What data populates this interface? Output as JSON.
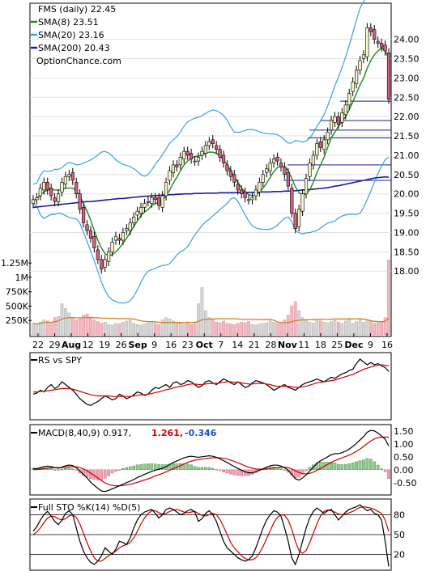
{
  "chart_data": [
    {
      "type": "candlestick",
      "symbol_label": "FMS (daily) 22.45",
      "legend": [
        {
          "name": "SMA(8) 23.51",
          "color": "#1a8a1a"
        },
        {
          "name": "SMA(20) 23.16",
          "color": "#3aa0e0"
        },
        {
          "name": "SMA(200) 20.43",
          "color": "#1a1aa0"
        }
      ],
      "watermark": "OptionChance.com",
      "price_ticks": [
        "24.00",
        "23.50",
        "23.00",
        "22.50",
        "22.00",
        "21.50",
        "21.00",
        "20.50",
        "20.00",
        "19.50",
        "19.00",
        "18.50",
        "18.00"
      ],
      "ylim": [
        17.9,
        24.6
      ],
      "volume_ticks": [
        "1.25M",
        "1M",
        "750K",
        "500K",
        "250K"
      ],
      "x_labels": [
        {
          "text": "22",
          "bold": false
        },
        {
          "text": "29",
          "bold": false
        },
        {
          "text": "Aug",
          "bold": true
        },
        {
          "text": "12",
          "bold": false
        },
        {
          "text": "19",
          "bold": false
        },
        {
          "text": "26",
          "bold": false
        },
        {
          "text": "Sep",
          "bold": true
        },
        {
          "text": "9",
          "bold": false
        },
        {
          "text": "16",
          "bold": false
        },
        {
          "text": "23",
          "bold": false
        },
        {
          "text": "Oct",
          "bold": true
        },
        {
          "text": "7",
          "bold": false
        },
        {
          "text": "14",
          "bold": false
        },
        {
          "text": "21",
          "bold": false
        },
        {
          "text": "28",
          "bold": false
        },
        {
          "text": "Nov",
          "bold": true
        },
        {
          "text": "11",
          "bold": false
        },
        {
          "text": "18",
          "bold": false
        },
        {
          "text": "25",
          "bold": false
        },
        {
          "text": "Dec",
          "bold": true
        },
        {
          "text": "9",
          "bold": false
        },
        {
          "text": "16",
          "bold": false
        }
      ],
      "close": [
        19.85,
        19.9,
        20.15,
        20.3,
        20.1,
        19.95,
        19.8,
        20.0,
        20.3,
        20.45,
        20.5,
        20.35,
        20.0,
        19.6,
        19.25,
        19.05,
        18.85,
        18.6,
        18.3,
        18.05,
        18.3,
        18.5,
        18.75,
        18.9,
        18.8,
        19.0,
        19.1,
        19.25,
        19.4,
        19.55,
        19.65,
        19.75,
        19.8,
        19.9,
        19.85,
        19.7,
        19.95,
        20.3,
        20.6,
        20.75,
        20.7,
        20.95,
        21.1,
        21.0,
        20.9,
        20.85,
        20.95,
        21.1,
        21.25,
        21.35,
        21.3,
        21.15,
        20.95,
        20.8,
        20.6,
        20.45,
        20.3,
        20.1,
        20.0,
        19.9,
        19.85,
        19.9,
        20.1,
        20.3,
        20.5,
        20.65,
        20.8,
        20.9,
        20.85,
        20.7,
        20.5,
        20.2,
        19.5,
        19.1,
        19.6,
        20.0,
        20.4,
        20.8,
        21.0,
        21.3,
        21.2,
        21.4,
        21.6,
        21.9,
        22.0,
        21.8,
        22.1,
        22.3,
        22.6,
        22.9,
        23.2,
        23.45,
        23.6,
        24.3,
        24.2,
        24.0,
        23.9,
        23.8,
        23.7,
        22.45
      ],
      "sma8": [
        19.8,
        19.88,
        19.97,
        20.05,
        20.1,
        20.12,
        20.1,
        20.1,
        20.1,
        20.15,
        20.15,
        20.15,
        20.08,
        19.95,
        19.75,
        19.55,
        19.32,
        19.05,
        18.8,
        18.6,
        18.45,
        18.4,
        18.42,
        18.5,
        18.6,
        18.72,
        18.85,
        19.0,
        19.15,
        19.3,
        19.43,
        19.53,
        19.6,
        19.7,
        19.75,
        19.78,
        19.83,
        19.95,
        20.1,
        20.28,
        20.43,
        20.6,
        20.75,
        20.85,
        20.92,
        20.97,
        20.98,
        21.0,
        21.05,
        21.08,
        21.08,
        21.05,
        20.98,
        20.88,
        20.75,
        20.6,
        20.45,
        20.3,
        20.15,
        20.05,
        19.98,
        19.95,
        19.97,
        20.05,
        20.15,
        20.28,
        20.43,
        20.58,
        20.68,
        20.72,
        20.7,
        20.6,
        20.4,
        20.18,
        20.03,
        19.97,
        20.0,
        20.1,
        20.3,
        20.55,
        20.75,
        20.95,
        21.2,
        21.45,
        21.6,
        21.75,
        21.88,
        22.0,
        22.18,
        22.38,
        22.6,
        22.82,
        23.0,
        23.25,
        23.45,
        23.6,
        23.7,
        23.78,
        23.7,
        23.51
      ],
      "sma20": [
        20.0,
        19.98,
        19.97,
        19.98,
        20.0,
        20.03,
        20.05,
        20.07,
        20.08,
        20.1,
        20.1,
        20.08,
        20.05,
        20.0,
        19.9,
        19.8,
        19.7,
        19.6,
        19.5,
        19.4,
        19.3,
        19.2,
        19.12,
        19.05,
        19.0,
        18.97,
        18.96,
        18.97,
        19.0,
        19.05,
        19.1,
        19.17,
        19.25,
        19.33,
        19.42,
        19.5,
        19.58,
        19.66,
        19.75,
        19.85,
        19.95,
        20.05,
        20.15,
        20.25,
        20.35,
        20.45,
        20.52,
        20.6,
        20.68,
        20.74,
        20.8,
        20.83,
        20.85,
        20.85,
        20.83,
        20.8,
        20.75,
        20.7,
        20.62,
        20.55,
        20.48,
        20.42,
        20.38,
        20.35,
        20.33,
        20.32,
        20.32,
        20.34,
        20.36,
        20.38,
        20.38,
        20.36,
        20.3,
        20.22,
        20.18,
        20.15,
        20.18,
        20.22,
        20.3,
        20.4,
        20.5,
        20.62,
        20.76,
        20.9,
        21.05,
        21.2,
        21.35,
        21.5,
        21.66,
        21.82,
        21.98,
        22.15,
        22.32,
        22.5,
        22.68,
        22.85,
        23.0,
        23.12,
        23.2,
        23.16
      ],
      "sma200": [
        19.65,
        19.66,
        19.67,
        19.68,
        19.69,
        19.7,
        19.71,
        19.72,
        19.73,
        19.74,
        19.75,
        19.76,
        19.77,
        19.78,
        19.79,
        19.8,
        19.8,
        19.81,
        19.82,
        19.83,
        19.84,
        19.85,
        19.86,
        19.87,
        19.88,
        19.88,
        19.89,
        19.9,
        19.91,
        19.92,
        19.93,
        19.94,
        19.94,
        19.95,
        19.95,
        19.96,
        19.97,
        19.97,
        19.98,
        19.98,
        19.99,
        19.99,
        20.0,
        20.0,
        20.0,
        20.01,
        20.01,
        20.01,
        20.02,
        20.02,
        20.02,
        20.02,
        20.03,
        20.03,
        20.03,
        20.03,
        20.03,
        20.04,
        20.04,
        20.04,
        20.04,
        20.04,
        20.04,
        20.05,
        20.05,
        20.05,
        20.05,
        20.06,
        20.06,
        20.06,
        20.07,
        20.07,
        20.08,
        20.08,
        20.09,
        20.1,
        20.11,
        20.11,
        20.12,
        20.13,
        20.14,
        20.15,
        20.16,
        20.18,
        20.2,
        20.21,
        20.23,
        20.25,
        20.27,
        20.29,
        20.31,
        20.33,
        20.35,
        20.37,
        20.39,
        20.41,
        20.42,
        20.43,
        20.44,
        20.43
      ],
      "volume_k": [
        200,
        180,
        220,
        260,
        240,
        200,
        300,
        320,
        540,
        460,
        380,
        300,
        260,
        280,
        340,
        360,
        300,
        260,
        230,
        200,
        220,
        180,
        170,
        200,
        190,
        220,
        240,
        260,
        200,
        180,
        170,
        190,
        210,
        230,
        200,
        180,
        260,
        300,
        280,
        240,
        220,
        200,
        190,
        210,
        180,
        200,
        540,
        820,
        420,
        300,
        260,
        220,
        210,
        240,
        200,
        190,
        180,
        200,
        220,
        210,
        230,
        180,
        170,
        190,
        200,
        210,
        240,
        220,
        200,
        210,
        260,
        340,
        500,
        580,
        420,
        300,
        260,
        220,
        200,
        260,
        240,
        220,
        210,
        230,
        250,
        220,
        200,
        240,
        260,
        200,
        230,
        280,
        220,
        260,
        240,
        200,
        210,
        230,
        300,
        1300
      ],
      "resistance_levels": [
        20.75,
        21.45,
        21.65,
        21.9,
        22.4
      ],
      "support_levels": [
        20.35
      ]
    },
    {
      "type": "line",
      "title": "RS vs SPY",
      "series": [
        {
          "color": "#000000",
          "values": [
            0.38,
            0.4,
            0.45,
            0.42,
            0.5,
            0.55,
            0.48,
            0.52,
            0.6,
            0.55,
            0.5,
            0.45,
            0.38,
            0.3,
            0.25,
            0.2,
            0.18,
            0.22,
            0.25,
            0.3,
            0.35,
            0.32,
            0.28,
            0.3,
            0.38,
            0.35,
            0.3,
            0.33,
            0.37,
            0.42,
            0.4,
            0.36,
            0.38,
            0.45,
            0.5,
            0.48,
            0.52,
            0.55,
            0.5,
            0.58,
            0.6,
            0.55,
            0.57,
            0.62,
            0.6,
            0.55,
            0.5,
            0.53,
            0.6,
            0.62,
            0.58,
            0.55,
            0.6,
            0.65,
            0.62,
            0.58,
            0.55,
            0.6,
            0.55,
            0.5,
            0.52,
            0.58,
            0.62,
            0.6,
            0.58,
            0.55,
            0.5,
            0.45,
            0.48,
            0.52,
            0.55,
            0.5,
            0.48,
            0.45,
            0.5,
            0.55,
            0.58,
            0.6,
            0.62,
            0.65,
            0.62,
            0.6,
            0.64,
            0.68,
            0.66,
            0.7,
            0.74,
            0.76,
            0.8,
            0.82,
            0.92,
            1.0,
            0.95,
            0.9,
            0.94,
            0.9,
            0.92,
            0.88,
            0.85,
            0.78
          ]
        },
        {
          "color": "#cc0000",
          "values": [
            0.42,
            0.42,
            0.43,
            0.43,
            0.44,
            0.45,
            0.46,
            0.47,
            0.48,
            0.48,
            0.48,
            0.47,
            0.45,
            0.43,
            0.41,
            0.39,
            0.37,
            0.36,
            0.35,
            0.35,
            0.35,
            0.35,
            0.34,
            0.34,
            0.34,
            0.34,
            0.34,
            0.34,
            0.35,
            0.36,
            0.37,
            0.37,
            0.38,
            0.39,
            0.41,
            0.42,
            0.44,
            0.46,
            0.47,
            0.49,
            0.51,
            0.52,
            0.53,
            0.55,
            0.56,
            0.56,
            0.55,
            0.55,
            0.56,
            0.57,
            0.57,
            0.57,
            0.58,
            0.59,
            0.6,
            0.6,
            0.59,
            0.59,
            0.58,
            0.57,
            0.56,
            0.56,
            0.57,
            0.57,
            0.57,
            0.56,
            0.55,
            0.53,
            0.52,
            0.52,
            0.52,
            0.52,
            0.51,
            0.5,
            0.5,
            0.51,
            0.52,
            0.54,
            0.56,
            0.58,
            0.59,
            0.6,
            0.61,
            0.62,
            0.63,
            0.65,
            0.67,
            0.69,
            0.71,
            0.73,
            0.76,
            0.79,
            0.82,
            0.84,
            0.86,
            0.88,
            0.89,
            0.9,
            0.89,
            0.88
          ]
        }
      ]
    },
    {
      "type": "line",
      "title": "MACD(8,40,9) 0.917,",
      "legend_values": [
        {
          "text": "1.261,",
          "color": "#cc0000"
        },
        {
          "text": "-0.346",
          "color": "#1a4fd0"
        }
      ],
      "ticks": [
        "1.50",
        "1.00",
        "0.50",
        "0.00",
        "-0.50"
      ],
      "ylim": [
        -0.85,
        1.65
      ],
      "macd": [
        0.05,
        0.04,
        0.08,
        0.12,
        0.14,
        0.12,
        0.08,
        0.06,
        0.1,
        0.15,
        0.18,
        0.16,
        0.08,
        -0.05,
        -0.18,
        -0.32,
        -0.48,
        -0.6,
        -0.72,
        -0.82,
        -0.84,
        -0.8,
        -0.74,
        -0.68,
        -0.62,
        -0.56,
        -0.5,
        -0.44,
        -0.38,
        -0.3,
        -0.24,
        -0.18,
        -0.12,
        -0.06,
        -0.02,
        0.02,
        0.06,
        0.12,
        0.2,
        0.28,
        0.34,
        0.4,
        0.46,
        0.5,
        0.52,
        0.5,
        0.48,
        0.5,
        0.52,
        0.54,
        0.52,
        0.48,
        0.42,
        0.35,
        0.28,
        0.2,
        0.12,
        0.05,
        -0.02,
        -0.08,
        -0.12,
        -0.12,
        -0.08,
        -0.02,
        0.04,
        0.1,
        0.15,
        0.18,
        0.18,
        0.14,
        0.08,
        -0.02,
        -0.18,
        -0.35,
        -0.4,
        -0.32,
        -0.2,
        -0.05,
        0.1,
        0.25,
        0.35,
        0.42,
        0.5,
        0.58,
        0.62,
        0.62,
        0.66,
        0.72,
        0.8,
        0.9,
        1.02,
        1.15,
        1.28,
        1.45,
        1.52,
        1.5,
        1.42,
        1.3,
        1.18,
        0.92
      ],
      "signal": [
        0.0,
        0.01,
        0.02,
        0.04,
        0.06,
        0.08,
        0.08,
        0.08,
        0.08,
        0.1,
        0.11,
        0.12,
        0.11,
        0.08,
        0.03,
        -0.04,
        -0.13,
        -0.22,
        -0.32,
        -0.42,
        -0.51,
        -0.57,
        -0.61,
        -0.62,
        -0.62,
        -0.61,
        -0.59,
        -0.56,
        -0.53,
        -0.49,
        -0.44,
        -0.4,
        -0.35,
        -0.3,
        -0.24,
        -0.19,
        -0.14,
        -0.08,
        -0.02,
        0.04,
        0.1,
        0.16,
        0.22,
        0.28,
        0.33,
        0.37,
        0.39,
        0.41,
        0.43,
        0.45,
        0.46,
        0.47,
        0.46,
        0.44,
        0.41,
        0.37,
        0.32,
        0.27,
        0.21,
        0.15,
        0.1,
        0.06,
        0.03,
        0.02,
        0.02,
        0.03,
        0.05,
        0.07,
        0.09,
        0.1,
        0.1,
        0.08,
        0.03,
        -0.04,
        -0.11,
        -0.15,
        -0.16,
        -0.14,
        -0.09,
        -0.02,
        0.05,
        0.13,
        0.21,
        0.28,
        0.35,
        0.41,
        0.46,
        0.51,
        0.57,
        0.63,
        0.71,
        0.8,
        0.9,
        1.01,
        1.11,
        1.19,
        1.24,
        1.26,
        1.26,
        1.26
      ]
    },
    {
      "type": "line",
      "title": "Full STO %K(14) %D(5)",
      "ticks": [
        "80",
        "50",
        "20"
      ],
      "ylim": [
        0,
        100
      ],
      "k": [
        55,
        62,
        72,
        80,
        85,
        78,
        70,
        65,
        72,
        82,
        86,
        80,
        60,
        40,
        25,
        15,
        8,
        5,
        10,
        18,
        30,
        25,
        20,
        28,
        40,
        38,
        35,
        45,
        60,
        72,
        80,
        84,
        86,
        88,
        82,
        75,
        80,
        88,
        90,
        88,
        84,
        80,
        82,
        86,
        88,
        84,
        70,
        74,
        82,
        86,
        80,
        70,
        55,
        40,
        30,
        25,
        20,
        15,
        12,
        10,
        12,
        18,
        30,
        45,
        60,
        72,
        80,
        86,
        84,
        78,
        60,
        40,
        15,
        5,
        20,
        40,
        60,
        75,
        85,
        90,
        86,
        82,
        86,
        88,
        80,
        72,
        78,
        84,
        88,
        90,
        92,
        95,
        90,
        86,
        88,
        82,
        80,
        72,
        40,
        2
      ],
      "d": [
        50,
        54,
        60,
        68,
        75,
        78,
        77,
        74,
        72,
        74,
        78,
        80,
        76,
        66,
        52,
        38,
        25,
        15,
        10,
        10,
        14,
        18,
        22,
        25,
        30,
        33,
        35,
        38,
        45,
        55,
        66,
        75,
        82,
        86,
        86,
        83,
        81,
        82,
        85,
        87,
        88,
        86,
        84,
        83,
        84,
        85,
        82,
        79,
        78,
        80,
        82,
        80,
        73,
        62,
        50,
        38,
        30,
        24,
        18,
        14,
        12,
        12,
        15,
        22,
        32,
        44,
        56,
        68,
        76,
        80,
        79,
        72,
        58,
        40,
        26,
        22,
        26,
        38,
        52,
        66,
        78,
        85,
        87,
        86,
        84,
        81,
        80,
        81,
        83,
        85,
        88,
        91,
        92,
        91,
        90,
        88,
        85,
        82,
        72,
        55
      ]
    }
  ]
}
